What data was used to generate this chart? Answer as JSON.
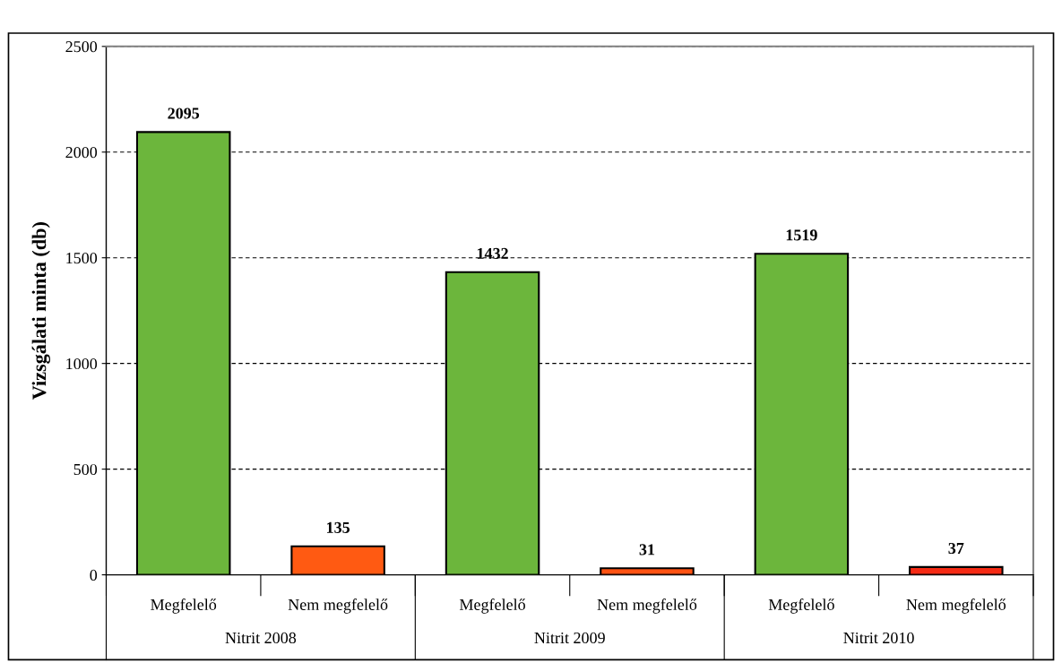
{
  "chart_data": {
    "type": "bar",
    "ylabel": "Vizsgálati minta (db)",
    "categories": [
      "Megfelelő",
      "Nem megfelelő",
      "Megfelelő",
      "Nem megfelelő",
      "Megfelelő",
      "Nem megfelelő"
    ],
    "values": [
      2095,
      135,
      1432,
      31,
      1519,
      37
    ],
    "colors": [
      "#6cb63c",
      "#ff5a12",
      "#6cb63c",
      "#ff5212",
      "#6cb63c",
      "#f52a14"
    ],
    "annotations": [
      "Nitrit 2008",
      "Nitrit 2009",
      "Nitrit 2010"
    ],
    "ylim": [
      0,
      2500
    ],
    "yticks": [
      0,
      500,
      1000,
      1500,
      2000,
      2500
    ],
    "grid": "y",
    "line_style": "dashed",
    "data_labels": true
  }
}
